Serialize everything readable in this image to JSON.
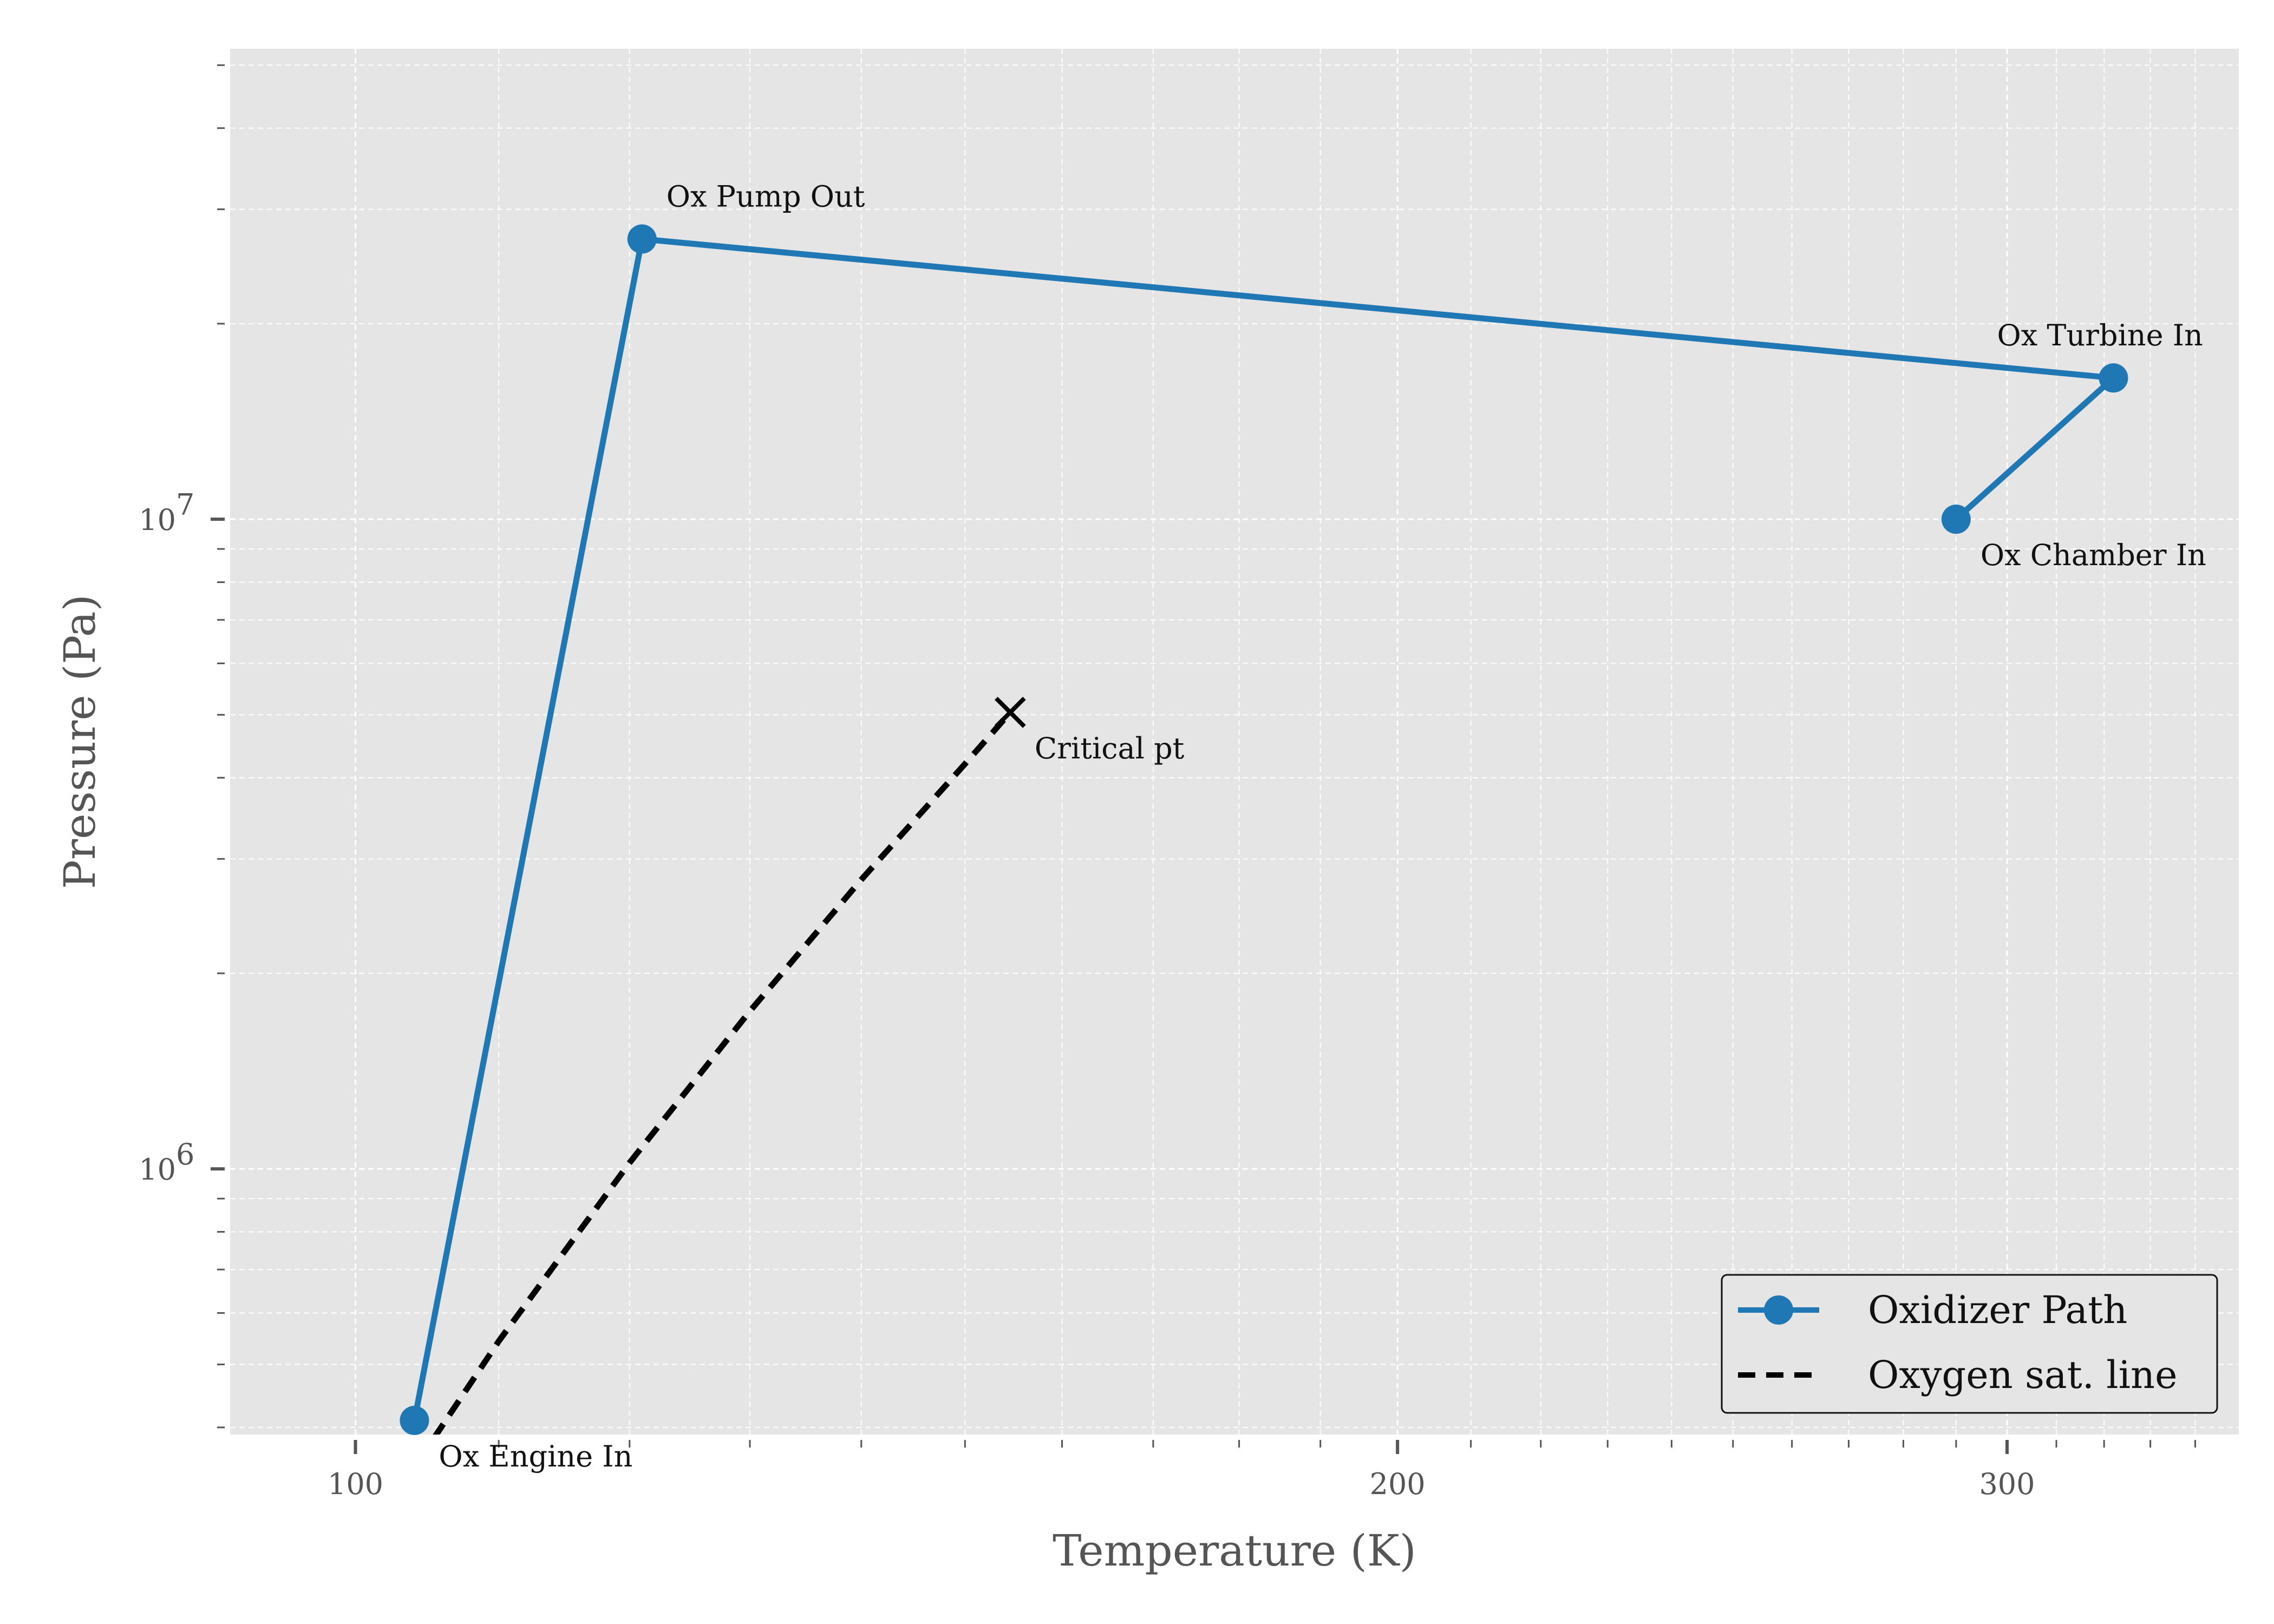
{
  "chart_data": {
    "type": "line",
    "xscale": "log",
    "yscale": "log",
    "xlabel": "Temperature (K)",
    "ylabel": "Pressure (Pa)",
    "xlim": [
      92,
      350
    ],
    "ylim": [
      390000,
      53000000
    ],
    "xticks": [
      {
        "value": 100,
        "label": "100"
      },
      {
        "value": 200,
        "label": "200"
      },
      {
        "value": 300,
        "label": "300"
      }
    ],
    "yticks": [
      {
        "value": 1000000,
        "label": "10",
        "exp": "6"
      },
      {
        "value": 10000000,
        "label": "10",
        "exp": "7"
      }
    ],
    "grid": true,
    "legend_position": "bottom-right",
    "series": [
      {
        "name": "Oxidizer Path",
        "color": "#1f77b4",
        "style": "solid-with-markers",
        "points": [
          {
            "x": 104,
            "y": 410000,
            "label": "Ox Engine In"
          },
          {
            "x": 121,
            "y": 27000000,
            "label": "Ox Pump Out"
          },
          {
            "x": 322,
            "y": 16500000,
            "label": "Ox Turbine In"
          },
          {
            "x": 290,
            "y": 10000000,
            "label": "Ox Chamber In"
          }
        ]
      },
      {
        "name": "Oxygen sat. line",
        "color": "#000000",
        "style": "dashed",
        "points": [
          {
            "x": 100,
            "y": 254000
          },
          {
            "x": 110,
            "y": 543000
          },
          {
            "x": 120,
            "y": 1022000
          },
          {
            "x": 130,
            "y": 1749000
          },
          {
            "x": 140,
            "y": 2788000
          },
          {
            "x": 150,
            "y": 4202000
          },
          {
            "x": 154.58,
            "y": 5043000
          }
        ]
      }
    ],
    "annotations": [
      {
        "x": 154.58,
        "y": 5043000,
        "marker": "x",
        "text": "Critical pt"
      }
    ]
  }
}
